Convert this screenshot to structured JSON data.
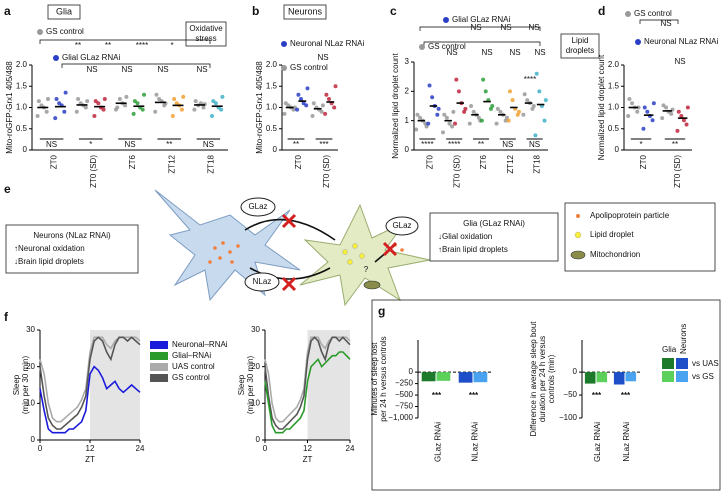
{
  "panel_labels": [
    "a",
    "b",
    "c",
    "d",
    "e",
    "f",
    "g"
  ],
  "chart_data": [
    {
      "type": "dot",
      "title": "Glia",
      "note": [
        "Oxidative",
        "stress"
      ],
      "ylabel": [
        "Mito-roGFP-Grx1 405/488"
      ],
      "ylim": [
        0,
        2
      ],
      "yticks": [
        0,
        0.5,
        {
          "value": 1,
          "label": "1.0"
        },
        1.5,
        {
          "value": 2,
          "label": "2.0"
        }
      ],
      "categories": [
        "ZT0",
        "ZT0 (SD)",
        "ZT6",
        "ZT12",
        "ZT18"
      ],
      "series": [
        {
          "name": "GS control",
          "colors": [
            "#999999",
            "#999999",
            "#999999",
            "#999999",
            "#999999"
          ],
          "points": [
            [
              0.8,
              0.9,
              1.0,
              1.05,
              1.15,
              1.2
            ],
            [
              0.9,
              1.0,
              1.05,
              1.1,
              1.2,
              1.15
            ],
            [
              0.95,
              1.05,
              1.1,
              1.2,
              1.0,
              1.25
            ],
            [
              0.9,
              1.05,
              1.15,
              1.2,
              1.3,
              1.1
            ],
            [
              0.95,
              1.0,
              1.1,
              1.05,
              1.15,
              1.08
            ]
          ],
          "means": [
            1.0,
            1.06,
            1.1,
            1.12,
            1.06
          ]
        },
        {
          "name": "Glial GLaz RNAi",
          "colors": [
            "#2a3fc4",
            "#c0243c",
            "#2e9e3a",
            "#f0a030",
            "#40b0c8"
          ],
          "points": [
            [
              0.75,
              0.9,
              1.05,
              1.1,
              1.2,
              1.35
            ],
            [
              0.8,
              0.95,
              1.0,
              1.1,
              1.15,
              1.2
            ],
            [
              0.85,
              0.95,
              1.0,
              1.1,
              1.15,
              1.3
            ],
            [
              0.8,
              0.95,
              1.05,
              1.1,
              1.2,
              1.25
            ],
            [
              0.8,
              0.95,
              1.0,
              1.1,
              1.15,
              1.25
            ]
          ],
          "means": [
            1.02,
            1.02,
            1.03,
            1.05,
            1.03
          ]
        }
      ],
      "bottom_labels": [
        "NS",
        "*",
        "NS",
        "**",
        "NS"
      ],
      "annotations": [
        "**",
        "**",
        "****",
        "*",
        "NS",
        "NS",
        "NS",
        "NS"
      ]
    },
    {
      "type": "dot",
      "title": "Neurons",
      "ylabel": [
        "Mito-roGFP-Grx1 405/488"
      ],
      "ylim": [
        0,
        2
      ],
      "yticks": [
        0,
        0.5,
        {
          "value": 1,
          "label": "1.0"
        },
        1.5,
        {
          "value": 2,
          "label": "2.0"
        }
      ],
      "categories": [
        "ZT0",
        "ZT0 (SD)"
      ],
      "series": [
        {
          "name": "GS control",
          "colors": [
            "#999999",
            "#999999"
          ],
          "points": [
            [
              0.85,
              0.95,
              1.0,
              1.05,
              1.1,
              1.0
            ],
            [
              0.8,
              0.9,
              0.95,
              1.0,
              1.1,
              1.05
            ]
          ],
          "means": [
            1.0,
            0.97
          ]
        },
        {
          "name": "Neuronal NLaz RNAi",
          "colors": [
            "#2a3fc4",
            "#c0243c"
          ],
          "points": [
            [
              0.95,
              1.05,
              1.1,
              1.2,
              1.3,
              1.45
            ],
            [
              0.85,
              1.0,
              1.1,
              1.2,
              1.3,
              1.5
            ]
          ],
          "means": [
            1.15,
            1.13
          ]
        }
      ],
      "bottom_labels": [
        "**",
        "***"
      ],
      "annotations": [
        "NS"
      ]
    },
    {
      "type": "dot",
      "note": [
        "Lipid",
        "droplets"
      ],
      "ylabel": [
        "Normalized lipid droplet count"
      ],
      "ylim": [
        0,
        3
      ],
      "yticks": [
        0,
        1,
        2,
        3
      ],
      "categories": [
        "ZT0",
        "ZT0 (SD)",
        "ZT6",
        "ZT12",
        "ZT18"
      ],
      "series": [
        {
          "name": "GS control",
          "colors": [
            "#999999",
            "#999999",
            "#999999",
            "#999999",
            "#999999"
          ],
          "points": [
            [
              0.7,
              0.9,
              1.0,
              1.1,
              1.2,
              0.8
            ],
            [
              0.6,
              0.8,
              0.9,
              1.1,
              1.2,
              1.3
            ],
            [
              0.9,
              1.1,
              1.2,
              1.3,
              1.5,
              1.0
            ],
            [
              0.9,
              1.0,
              1.2,
              1.3,
              1.4,
              1.1
            ],
            [
              1.2,
              1.4,
              1.6,
              1.7,
              1.9,
              1.5
            ]
          ],
          "means": [
            1.0,
            1.0,
            1.2,
            1.2,
            1.6
          ]
        },
        {
          "name": "Glial GLaz RNAi",
          "colors": [
            "#2a3fc4",
            "#c0243c",
            "#2e9e3a",
            "#f0a030",
            "#40b0c8"
          ],
          "points": [
            [
              0.9,
              1.2,
              1.5,
              1.8,
              2.2,
              1.4
            ],
            [
              0.9,
              1.3,
              1.6,
              2.0,
              2.4,
              1.4
            ],
            [
              1.0,
              1.4,
              1.7,
              2.0,
              2.4,
              1.5
            ],
            [
              1.0,
              1.2,
              1.4,
              1.7,
              2.0,
              1.3
            ],
            [
              0.5,
              1.0,
              1.5,
              2.0,
              2.6,
              1.7
            ]
          ],
          "means": [
            1.5,
            1.6,
            1.65,
            1.45,
            1.55
          ]
        }
      ],
      "bottom_labels": [
        "****",
        "****",
        "**",
        "NS",
        "NS"
      ],
      "annotations": [
        "NS",
        "NS",
        "NS",
        "NS",
        "NS",
        "NS",
        "NS",
        "****"
      ]
    },
    {
      "type": "dot",
      "ylabel": [
        "Normalized lipid droplet count"
      ],
      "ylim": [
        0,
        2
      ],
      "yticks": [
        0,
        0.5,
        {
          "value": 1,
          "label": "1.0"
        },
        1.5,
        {
          "value": 2,
          "label": "2.0"
        }
      ],
      "categories": [
        "ZT0",
        "ZT0 (SD)"
      ],
      "series": [
        {
          "name": "GS control",
          "colors": [
            "#999999",
            "#999999"
          ],
          "points": [
            [
              0.8,
              0.9,
              1.0,
              1.1,
              1.2,
              1.0
            ],
            [
              0.75,
              0.85,
              0.9,
              1.0,
              1.05,
              0.95
            ]
          ],
          "means": [
            1.0,
            0.92
          ]
        },
        {
          "name": "Neuronal NLaz RNAi",
          "colors": [
            "#2a3fc4",
            "#c0243c"
          ],
          "points": [
            [
              0.5,
              0.7,
              0.8,
              0.9,
              1.0,
              1.1
            ],
            [
              0.45,
              0.6,
              0.7,
              0.8,
              0.9,
              1.0
            ]
          ],
          "means": [
            0.82,
            0.75
          ]
        }
      ],
      "bottom_labels": [
        "*",
        "**"
      ],
      "annotations": [
        "NS",
        "NS"
      ]
    },
    {
      "type": "line",
      "ylabel": [
        "Sleep",
        "(min per 30 min)"
      ],
      "xlabel": "ZT",
      "xlim": [
        0,
        24
      ],
      "xticks": [
        0,
        12,
        24
      ],
      "ylim": [
        0,
        30
      ],
      "yticks": [
        0,
        10,
        20,
        30
      ],
      "night": [
        12,
        24
      ],
      "x": [
        0,
        1,
        2,
        3,
        4,
        5,
        6,
        7,
        8,
        9,
        10,
        11,
        12,
        13,
        14,
        15,
        16,
        17,
        18,
        19,
        20,
        21,
        22,
        23,
        24
      ],
      "series": [
        {
          "color": "#aaaaaa",
          "values": [
            22,
            18,
            10,
            6,
            5,
            5,
            6,
            7,
            8,
            9,
            11,
            14,
            24,
            28,
            28,
            28,
            26,
            25,
            27,
            28,
            28,
            28,
            28,
            28,
            27
          ]
        },
        {
          "color": "#555555",
          "values": [
            20,
            12,
            6,
            4,
            3,
            3,
            4,
            5,
            6,
            7,
            9,
            12,
            22,
            27,
            28,
            27,
            24,
            22,
            26,
            28,
            28,
            27,
            28,
            27,
            26
          ]
        },
        {
          "color": "#1a1adb",
          "values": [
            14,
            8,
            3,
            2,
            2,
            2,
            2,
            3,
            3,
            4,
            5,
            8,
            18,
            20,
            19,
            17,
            14,
            15,
            16,
            14,
            13,
            14,
            15,
            14,
            13
          ]
        }
      ]
    },
    {
      "type": "line",
      "ylabel": [
        "Sleep",
        "(min per 30 min)"
      ],
      "xlabel": "ZT",
      "xlim": [
        0,
        24
      ],
      "xticks": [
        0,
        12,
        24
      ],
      "ylim": [
        0,
        30
      ],
      "yticks": [
        0,
        10,
        20,
        30
      ],
      "night": [
        12,
        24
      ],
      "x": [
        0,
        1,
        2,
        3,
        4,
        5,
        6,
        7,
        8,
        9,
        10,
        11,
        12,
        13,
        14,
        15,
        16,
        17,
        18,
        19,
        20,
        21,
        22,
        23,
        24
      ],
      "series": [
        {
          "color": "#aaaaaa",
          "values": [
            22,
            18,
            10,
            6,
            5,
            5,
            6,
            7,
            8,
            9,
            11,
            14,
            24,
            28,
            28,
            28,
            26,
            25,
            27,
            28,
            28,
            28,
            28,
            28,
            27
          ]
        },
        {
          "color": "#555555",
          "values": [
            20,
            12,
            6,
            4,
            3,
            3,
            4,
            5,
            6,
            7,
            9,
            12,
            22,
            27,
            28,
            27,
            24,
            22,
            26,
            28,
            28,
            27,
            28,
            27,
            26
          ]
        },
        {
          "color": "#2a9a2a",
          "values": [
            16,
            10,
            4,
            2,
            2,
            2,
            3,
            3,
            4,
            5,
            6,
            8,
            16,
            20,
            21,
            22,
            20,
            21,
            22,
            23,
            23,
            24,
            24,
            23,
            22
          ]
        }
      ]
    },
    {
      "type": "bar",
      "ylabel": [
        "Minutes of sleep lost",
        "per 24 h versus controls"
      ],
      "ylim": [
        -1000,
        700
      ],
      "yticks": [
        {
          "value": -1000,
          "label": "−1,000"
        },
        {
          "value": -750,
          "label": "−750"
        },
        {
          "value": -500,
          "label": "−500"
        },
        {
          "value": -250,
          "label": "−250"
        },
        0
      ],
      "categories": [
        "GLaz RNAi",
        "NLaz RNAi"
      ],
      "series": [
        {
          "colors": [
            "#1d7a2a",
            "#1f4fc8"
          ],
          "values": [
            -200,
            -230
          ]
        },
        {
          "colors": [
            "#5bd05b",
            "#4aa3f0"
          ],
          "values": [
            -190,
            -220
          ]
        }
      ],
      "bottom_labels": [
        "***",
        "***"
      ]
    },
    {
      "type": "bar",
      "ylabel": [
        "Difference in average sleep bout",
        "duration per 24 h versus",
        "controls (min)"
      ],
      "ylim": [
        -100,
        70
      ],
      "yticks": [
        {
          "value": -100,
          "label": "−100"
        },
        {
          "value": -50,
          "label": "−50"
        },
        0
      ],
      "categories": [
        "GLaz RNAi",
        "NLaz RNAi"
      ],
      "series": [
        {
          "name": "vs UAS",
          "colors": [
            "#1d7a2a",
            "#1f4fc8"
          ],
          "values": [
            -25,
            -27
          ]
        },
        {
          "name": "vs GS",
          "colors": [
            "#5bd05b",
            "#4aa3f0"
          ],
          "values": [
            -22,
            -20
          ]
        }
      ],
      "bottom_labels": [
        "***",
        "***"
      ],
      "legend_columns": [
        "Glia",
        "Neurons"
      ]
    }
  ],
  "legend_f": [
    {
      "name": "Neuronal–RNAi",
      "color": "#1a1adb"
    },
    {
      "name": "Glial–RNAi",
      "color": "#2a9a2a"
    },
    {
      "name": "UAS control",
      "color": "#aaaaaa"
    },
    {
      "name": "GS control",
      "color": "#555555"
    }
  ],
  "diagram": {
    "neurons": [
      "Neurons (NLaz RNAi)",
      "↑Neuronal oxidation",
      "↓Brain lipid droplets"
    ],
    "glia": [
      "Glia (GLaz RNAi)",
      "↓Glial oxidation",
      "↑Brain lipid droplets"
    ],
    "bubbles": [
      "GLaz",
      "NLaz",
      "GLaz"
    ],
    "question": "?",
    "legend": [
      "Apolipoprotein particle",
      "Lipid droplet",
      "Mitochondrion"
    ]
  }
}
